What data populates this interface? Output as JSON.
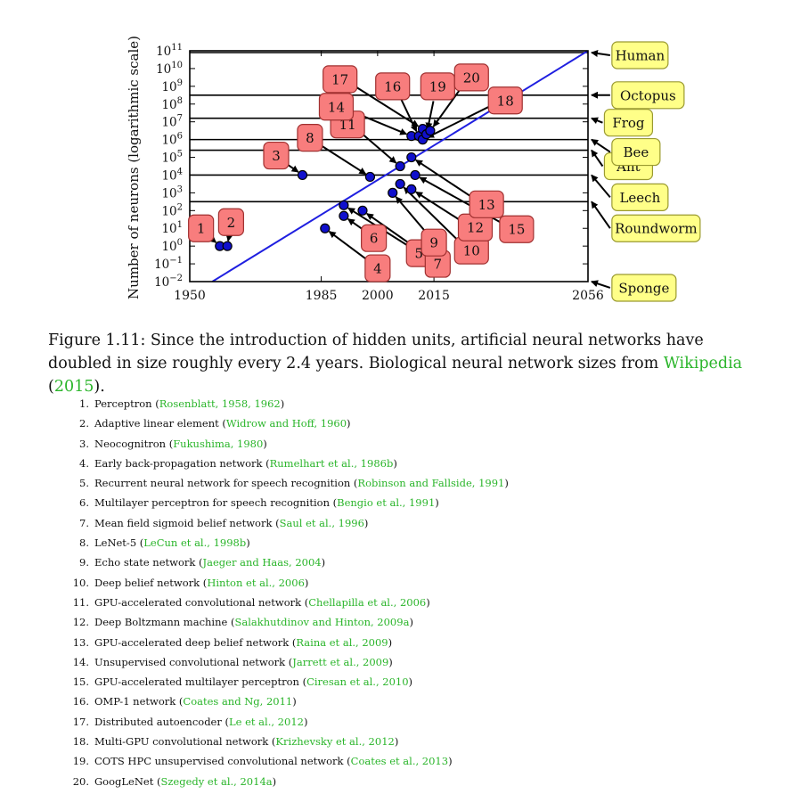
{
  "chart_data": {
    "type": "scatter",
    "ylabel": "Number of neurons (logarithmic scale)",
    "x_ticks": [
      "1950",
      "1985",
      "2000",
      "2015",
      "2056"
    ],
    "y_ticks": [
      "10^{-2}",
      "10^{-1}",
      "10^{0}",
      "10^{1}",
      "10^{2}",
      "10^{3}",
      "10^{4}",
      "10^{5}",
      "10^{6}",
      "10^{7}",
      "10^{8}",
      "10^{9}",
      "10^{10}",
      "10^{11}"
    ],
    "xlim": [
      1950,
      2056
    ],
    "ylim_log10": [
      -2,
      11
    ],
    "y_scale": "log",
    "trend_line": {
      "from": [
        1956,
        -2
      ],
      "to": [
        2056,
        11
      ],
      "color": "#1f1fe0"
    },
    "references": [
      {
        "label": "Roundworm",
        "log10": 2.5,
        "label_x": 2060,
        "label_y": 1.0
      },
      {
        "label": "Leech",
        "log10": 4.0,
        "label_x": 2060,
        "label_y": 2.75
      },
      {
        "label": "Ant",
        "log10": 5.4,
        "label_x": 2058,
        "label_y": 4.5
      },
      {
        "label": "Bee",
        "log10": 6.0,
        "label_x": 2060,
        "label_y": 5.3
      },
      {
        "label": "Frog",
        "log10": 7.2,
        "label_x": 2058,
        "label_y": 6.95
      },
      {
        "label": "Octopus",
        "log10": 8.5,
        "label_x": 2060,
        "label_y": 8.5
      },
      {
        "label": "Human",
        "log10": 10.9,
        "label_x": 2060,
        "label_y": 10.75
      },
      {
        "label": "Sponge",
        "log10": null,
        "label_x": 2060,
        "label_y": -2.35
      }
    ],
    "points": [
      {
        "id": "1",
        "x": 1958,
        "y": 0.0,
        "lx": 1953,
        "ly": 1.0
      },
      {
        "id": "2",
        "x": 1960,
        "y": 0.0,
        "lx": 1961,
        "ly": 1.35
      },
      {
        "id": "3",
        "x": 1980,
        "y": 4.0,
        "lx": 1973,
        "ly": 5.1
      },
      {
        "id": "4",
        "x": 1986,
        "y": 1.0,
        "lx": 2000,
        "ly": -1.25
      },
      {
        "id": "5",
        "x": 1991,
        "y": 2.3,
        "lx": 2011,
        "ly": -0.4
      },
      {
        "id": "6",
        "x": 1991,
        "y": 1.7,
        "lx": 1999,
        "ly": 0.45
      },
      {
        "id": "7",
        "x": 1996,
        "y": 2.0,
        "lx": 2016,
        "ly": -1.0
      },
      {
        "id": "8",
        "x": 1998,
        "y": 3.9,
        "lx": 1982,
        "ly": 6.1
      },
      {
        "id": "9",
        "x": 2004,
        "y": 3.0,
        "lx": 2015,
        "ly": 0.2
      },
      {
        "id": "10",
        "x": 2006,
        "y": 3.5,
        "lx": 2025,
        "ly": -0.25
      },
      {
        "id": "11",
        "x": 2006,
        "y": 4.5,
        "lx": 1992,
        "ly": 6.85
      },
      {
        "id": "12",
        "x": 2009,
        "y": 3.2,
        "lx": 2026,
        "ly": 1.05
      },
      {
        "id": "13",
        "x": 2009,
        "y": 5.0,
        "lx": 2029,
        "ly": 2.35
      },
      {
        "id": "14",
        "x": 2009,
        "y": 6.2,
        "lx": 1989,
        "ly": 7.85
      },
      {
        "id": "15",
        "x": 2010,
        "y": 4.0,
        "lx": 2037,
        "ly": 0.95
      },
      {
        "id": "16",
        "x": 2011,
        "y": 6.2,
        "lx": 2004,
        "ly": 9.0
      },
      {
        "id": "17",
        "x": 2012,
        "y": 6.6,
        "lx": 1990,
        "ly": 9.4
      },
      {
        "id": "18",
        "x": 2012,
        "y": 6.0,
        "lx": 2034,
        "ly": 8.2
      },
      {
        "id": "19",
        "x": 2013,
        "y": 6.3,
        "lx": 2016,
        "ly": 9.0
      },
      {
        "id": "20",
        "x": 2014,
        "y": 6.5,
        "lx": 2025,
        "ly": 9.5
      }
    ]
  },
  "caption": {
    "label": "Figure 1.11:",
    "text": " Since the introduction of hidden units, artificial neural networks have doubled in size roughly every 2.4 years. Biological neural network sizes from ",
    "cite_text": "Wikipedia",
    "cite_year": "2015",
    "end": ")."
  },
  "references_list": [
    {
      "n": "1.",
      "name": "Perceptron",
      "cite": "Rosenblatt, 1958, 1962"
    },
    {
      "n": "2.",
      "name": "Adaptive linear element",
      "cite": "Widrow and Hoff, 1960"
    },
    {
      "n": "3.",
      "name": "Neocognitron",
      "cite": "Fukushima, 1980"
    },
    {
      "n": "4.",
      "name": "Early back-propagation network",
      "cite": "Rumelhart et al., 1986b"
    },
    {
      "n": "5.",
      "name": "Recurrent neural network for speech recognition",
      "cite": "Robinson and Fallside, 1991"
    },
    {
      "n": "6.",
      "name": "Multilayer perceptron for speech recognition",
      "cite": "Bengio et al., 1991"
    },
    {
      "n": "7.",
      "name": "Mean field sigmoid belief network",
      "cite": "Saul et al., 1996"
    },
    {
      "n": "8.",
      "name": "LeNet-5",
      "cite": "LeCun et al., 1998b"
    },
    {
      "n": "9.",
      "name": "Echo state network",
      "cite": "Jaeger and Haas, 2004"
    },
    {
      "n": "10.",
      "name": "Deep belief network",
      "cite": "Hinton et al., 2006"
    },
    {
      "n": "11.",
      "name": "GPU-accelerated convolutional network",
      "cite": "Chellapilla et al., 2006"
    },
    {
      "n": "12.",
      "name": "Deep Boltzmann machine",
      "cite": "Salakhutdinov and Hinton, 2009a"
    },
    {
      "n": "13.",
      "name": "GPU-accelerated deep belief network",
      "cite": "Raina et al., 2009"
    },
    {
      "n": "14.",
      "name": "Unsupervised convolutional network",
      "cite": "Jarrett et al., 2009"
    },
    {
      "n": "15.",
      "name": "GPU-accelerated multilayer perceptron",
      "cite": "Ciresan et al., 2010"
    },
    {
      "n": "16.",
      "name": "OMP-1 network",
      "cite": "Coates and Ng, 2011"
    },
    {
      "n": "17.",
      "name": "Distributed autoencoder",
      "cite": "Le et al., 2012"
    },
    {
      "n": "18.",
      "name": "Multi-GPU convolutional network",
      "cite": "Krizhevsky et al., 2012"
    },
    {
      "n": "19.",
      "name": "COTS HPC unsupervised convolutional network",
      "cite": "Coates et al., 2013"
    },
    {
      "n": "20.",
      "name": "GoogLeNet",
      "cite": "Szegedy et al., 2014a"
    }
  ],
  "colors": {
    "point": "#1010cc",
    "label_box": "#f87d7d",
    "ref_box": "#ffff88",
    "cite": "#2ab52a",
    "trend": "#1f1fe0"
  }
}
